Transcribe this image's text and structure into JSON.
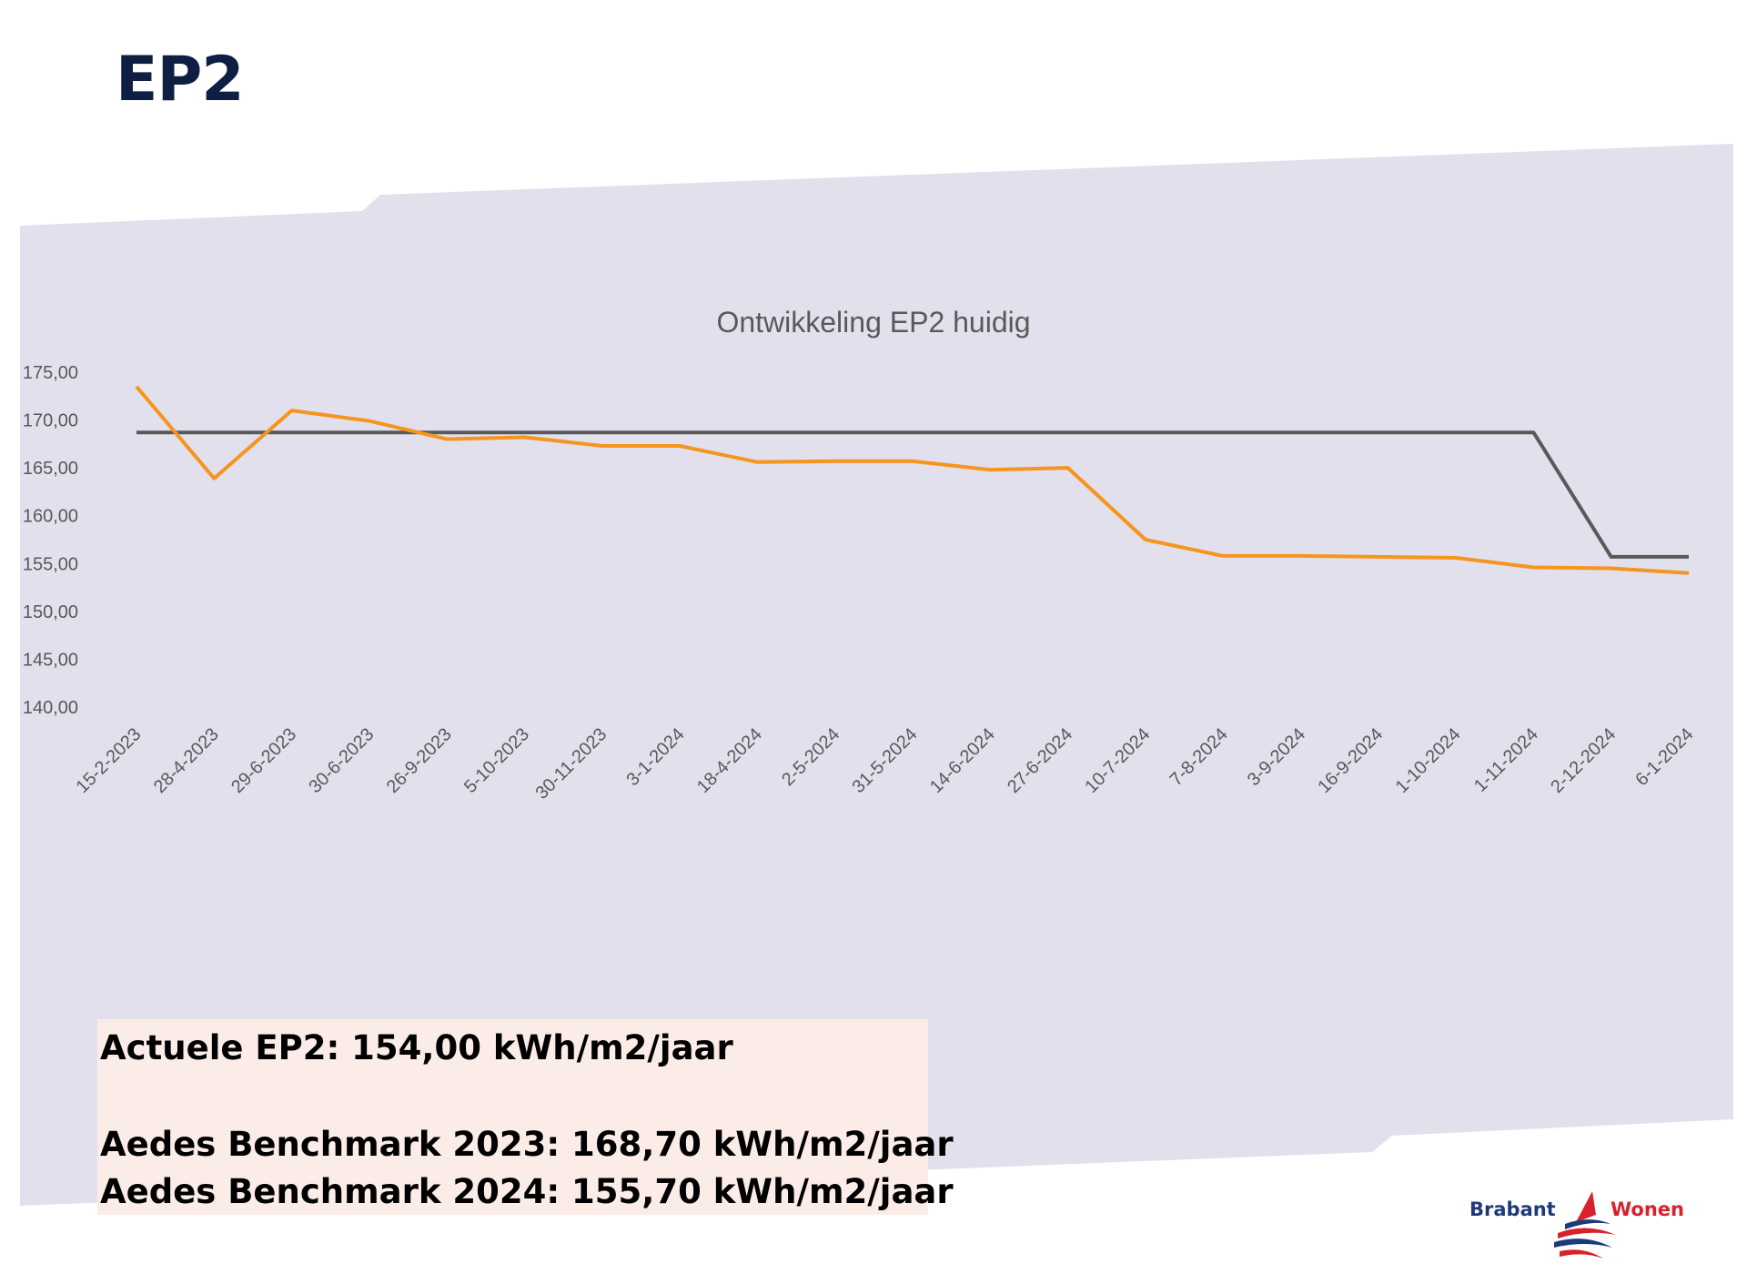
{
  "slide": {
    "title": "EP2"
  },
  "info": {
    "actual": "Actuele EP2: 154,00 kWh/m2/jaar",
    "benchmark_2023": "Aedes Benchmark 2023: 168,70 kWh/m2/jaar",
    "benchmark_2024": "Aedes Benchmark 2024: 155,70 kWh/m2/jaar"
  },
  "logo": {
    "left": "Brabant",
    "right": "Wonen"
  },
  "colors": {
    "band": "#e1e0ec",
    "series_actual": "#f7941d",
    "series_benchmark": "#595959",
    "title": "#0f1f44"
  },
  "chart_data": {
    "type": "line",
    "title": "Ontwikkeling EP2 huidig",
    "categories": [
      "15-2-2023",
      "28-4-2023",
      "29-6-2023",
      "30-6-2023",
      "26-9-2023",
      "5-10-2023",
      "30-11-2023",
      "3-1-2024",
      "18-4-2024",
      "2-5-2024",
      "31-5-2024",
      "14-6-2024",
      "27-6-2024",
      "10-7-2024",
      "7-8-2024",
      "3-9-2024",
      "16-9-2024",
      "1-10-2024",
      "1-11-2024",
      "2-12-2024",
      "6-1-2024"
    ],
    "series": [
      {
        "values": [
          173.5,
          163.9,
          171.0,
          169.9,
          168.0,
          168.2,
          167.3,
          167.3,
          165.6,
          165.7,
          165.7,
          164.8,
          165.0,
          157.5,
          155.8,
          155.8,
          155.7,
          155.6,
          154.6,
          154.5,
          154.0
        ],
        "color": "#f7941d"
      },
      {
        "values": [
          168.7,
          168.7,
          168.7,
          168.7,
          168.7,
          168.7,
          168.7,
          168.7,
          168.7,
          168.7,
          168.7,
          168.7,
          168.7,
          168.7,
          168.7,
          168.7,
          168.7,
          168.7,
          168.7,
          155.7,
          155.7
        ],
        "color": "#595959"
      }
    ],
    "yticks": [
      "175,00",
      "170,00",
      "165,00",
      "160,00",
      "155,00",
      "150,00",
      "145,00",
      "140,00"
    ],
    "ylim": [
      140,
      175
    ],
    "grid": false,
    "legend": "none"
  }
}
